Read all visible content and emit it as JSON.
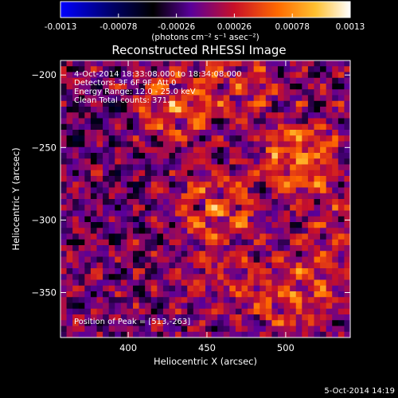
{
  "colorbar": {
    "ticks": [
      "-0.0013",
      "-0.00078",
      "-0.00026",
      "0.00026",
      "0.00078",
      "0.0013"
    ],
    "tick_values": [
      -0.0013,
      -0.00078,
      -0.00026,
      0.00026,
      0.00078,
      0.0013
    ],
    "units_label": "(photons cm⁻² s⁻¹ asec⁻²)",
    "range": [
      -0.0013,
      0.0013
    ],
    "colormap": [
      "#0000ff",
      "#000000",
      "#6b00b0",
      "#d01020",
      "#ff7a00",
      "#ffffff"
    ]
  },
  "chart_data": {
    "type": "heatmap",
    "title": "Reconstructed RHESSI Image",
    "xlabel": "Heliocentric X (arcsec)",
    "ylabel": "Heliocentric Y (arcsec)",
    "xlim": [
      357,
      541
    ],
    "ylim": [
      -381,
      -190
    ],
    "x_ticks": [
      400,
      450,
      500
    ],
    "y_ticks": [
      -200,
      -250,
      -300,
      -350
    ],
    "annotations": [
      " 4-Oct-2014 18:33:08.000 to 18:34:08.000",
      "Detectors: 3F 6F 9F, Att 0",
      "Energy Range: 12.0 - 25.0 keV",
      "Clean    Total counts: 371."
    ],
    "peak_label": "Position of Peak = [513,-263]",
    "peak": [
      513,
      -263
    ],
    "sources": [
      {
        "x": 510,
        "y": -258,
        "intensity": 0.00125
      },
      {
        "x": 455,
        "y": -293,
        "intensity": 0.00095
      },
      {
        "x": 428,
        "y": -222,
        "intensity": 0.00085
      },
      {
        "x": 505,
        "y": -352,
        "intensity": 0.0009
      },
      {
        "x": 470,
        "y": -205,
        "intensity": 0.0006
      },
      {
        "x": 535,
        "y": -310,
        "intensity": 0.0005
      },
      {
        "x": 460,
        "y": -345,
        "intensity": 0.00045
      },
      {
        "x": 383,
        "y": -235,
        "intensity": -0.0003
      },
      {
        "x": 395,
        "y": -292,
        "intensity": -0.00022
      }
    ]
  },
  "footer": {
    "date": "5-Oct-2014 14:19"
  }
}
